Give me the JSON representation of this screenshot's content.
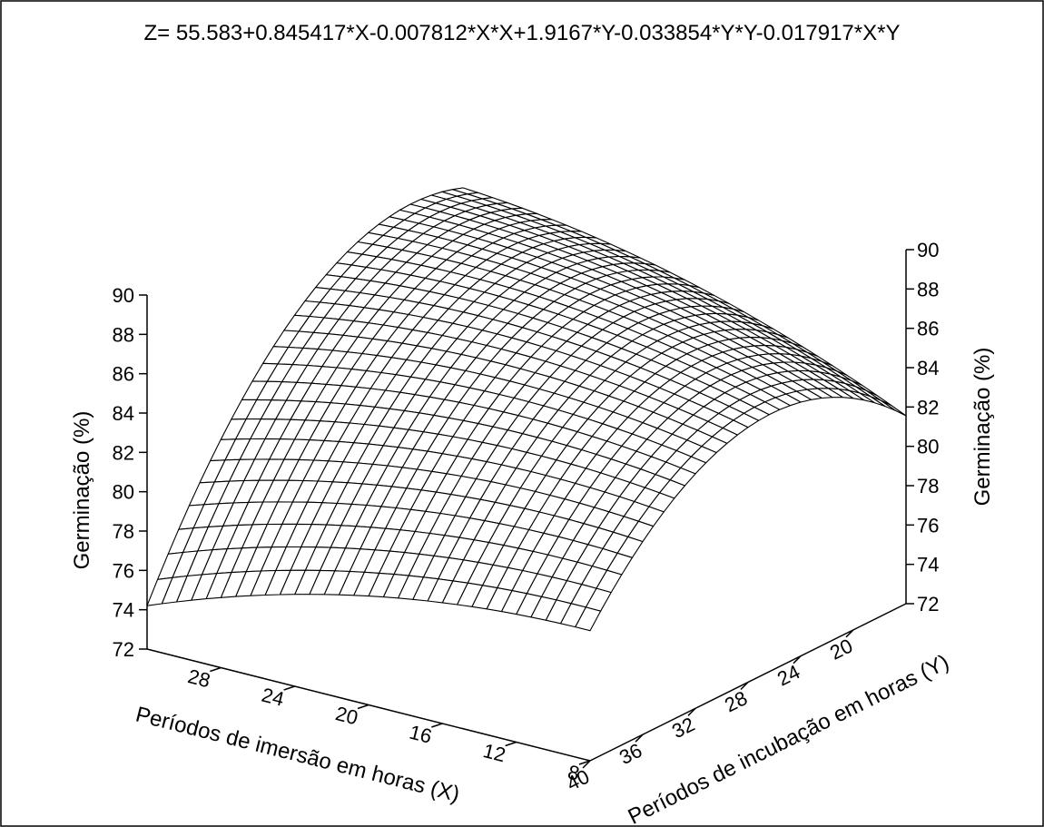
{
  "chart_data": {
    "type": "surface3d",
    "title": "Z= 55.583+0.845417*X-0.007812*X*X+1.9167*Y-0.033854*Y*Y-0.017917*X*Y",
    "equation": {
      "intercept": 55.583,
      "x": 0.845417,
      "xx": -0.007812,
      "y": 1.9167,
      "yy": -0.033854,
      "xy": -0.017917
    },
    "x_axis": {
      "label": "Períodos de imersão em horas (X)",
      "range": [
        8,
        32
      ],
      "ticks": [
        8,
        12,
        16,
        20,
        24,
        28
      ]
    },
    "y_axis": {
      "label": "Períodos de incubação em horas (Y)",
      "range": [
        16,
        40
      ],
      "ticks": [
        40,
        36,
        32,
        28,
        24,
        20
      ]
    },
    "z_axis": {
      "label": "Germinação (%)",
      "range": [
        72,
        90
      ],
      "ticks": [
        72,
        74,
        76,
        78,
        80,
        82,
        84,
        86,
        88,
        90
      ]
    },
    "mesh": {
      "nx": 30,
      "ny": 30
    }
  }
}
